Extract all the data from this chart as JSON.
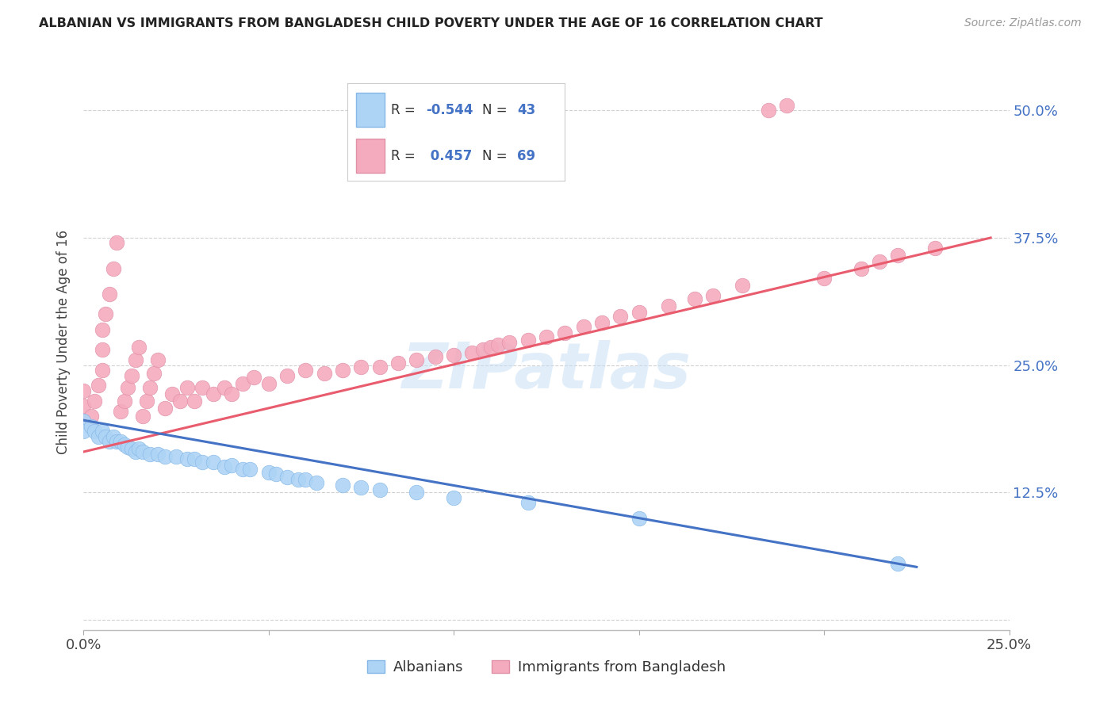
{
  "title": "ALBANIAN VS IMMIGRANTS FROM BANGLADESH CHILD POVERTY UNDER THE AGE OF 16 CORRELATION CHART",
  "source": "Source: ZipAtlas.com",
  "ylabel": "Child Poverty Under the Age of 16",
  "xlim": [
    0.0,
    0.25
  ],
  "ylim": [
    -0.01,
    0.555
  ],
  "xticks": [
    0.0,
    0.05,
    0.1,
    0.15,
    0.2,
    0.25
  ],
  "xtick_labels": [
    "0.0%",
    "",
    "",
    "",
    "",
    "25.0%"
  ],
  "yticks": [
    0.0,
    0.125,
    0.25,
    0.375,
    0.5
  ],
  "ytick_labels": [
    "",
    "12.5%",
    "25.0%",
    "37.5%",
    "50.0%"
  ],
  "albanians_color": "#aed4f5",
  "bangladesh_color": "#f5abbe",
  "line_albanian_color": "#4472c4",
  "line_bangladesh_color": "#e85c6e",
  "albanians_scatter": [
    [
      0.0,
      0.195
    ],
    [
      0.0,
      0.185
    ],
    [
      0.002,
      0.19
    ],
    [
      0.003,
      0.185
    ],
    [
      0.004,
      0.18
    ],
    [
      0.005,
      0.185
    ],
    [
      0.006,
      0.18
    ],
    [
      0.007,
      0.175
    ],
    [
      0.008,
      0.18
    ],
    [
      0.009,
      0.175
    ],
    [
      0.01,
      0.175
    ],
    [
      0.011,
      0.172
    ],
    [
      0.012,
      0.17
    ],
    [
      0.013,
      0.168
    ],
    [
      0.014,
      0.165
    ],
    [
      0.015,
      0.168
    ],
    [
      0.016,
      0.165
    ],
    [
      0.018,
      0.163
    ],
    [
      0.02,
      0.163
    ],
    [
      0.022,
      0.16
    ],
    [
      0.025,
      0.16
    ],
    [
      0.028,
      0.158
    ],
    [
      0.03,
      0.158
    ],
    [
      0.032,
      0.155
    ],
    [
      0.035,
      0.155
    ],
    [
      0.038,
      0.15
    ],
    [
      0.04,
      0.152
    ],
    [
      0.043,
      0.148
    ],
    [
      0.045,
      0.148
    ],
    [
      0.05,
      0.145
    ],
    [
      0.052,
      0.143
    ],
    [
      0.055,
      0.14
    ],
    [
      0.058,
      0.138
    ],
    [
      0.06,
      0.138
    ],
    [
      0.063,
      0.135
    ],
    [
      0.07,
      0.132
    ],
    [
      0.075,
      0.13
    ],
    [
      0.08,
      0.128
    ],
    [
      0.09,
      0.125
    ],
    [
      0.1,
      0.12
    ],
    [
      0.12,
      0.115
    ],
    [
      0.15,
      0.1
    ],
    [
      0.22,
      0.055
    ]
  ],
  "bangladesh_scatter": [
    [
      0.0,
      0.195
    ],
    [
      0.0,
      0.21
    ],
    [
      0.0,
      0.225
    ],
    [
      0.002,
      0.2
    ],
    [
      0.003,
      0.215
    ],
    [
      0.004,
      0.23
    ],
    [
      0.005,
      0.245
    ],
    [
      0.005,
      0.265
    ],
    [
      0.005,
      0.285
    ],
    [
      0.006,
      0.3
    ],
    [
      0.007,
      0.32
    ],
    [
      0.008,
      0.345
    ],
    [
      0.009,
      0.37
    ],
    [
      0.01,
      0.205
    ],
    [
      0.011,
      0.215
    ],
    [
      0.012,
      0.228
    ],
    [
      0.013,
      0.24
    ],
    [
      0.014,
      0.255
    ],
    [
      0.015,
      0.268
    ],
    [
      0.016,
      0.2
    ],
    [
      0.017,
      0.215
    ],
    [
      0.018,
      0.228
    ],
    [
      0.019,
      0.242
    ],
    [
      0.02,
      0.255
    ],
    [
      0.022,
      0.208
    ],
    [
      0.024,
      0.222
    ],
    [
      0.026,
      0.215
    ],
    [
      0.028,
      0.228
    ],
    [
      0.03,
      0.215
    ],
    [
      0.032,
      0.228
    ],
    [
      0.035,
      0.222
    ],
    [
      0.038,
      0.228
    ],
    [
      0.04,
      0.222
    ],
    [
      0.043,
      0.232
    ],
    [
      0.046,
      0.238
    ],
    [
      0.05,
      0.232
    ],
    [
      0.055,
      0.24
    ],
    [
      0.06,
      0.245
    ],
    [
      0.065,
      0.242
    ],
    [
      0.07,
      0.245
    ],
    [
      0.075,
      0.248
    ],
    [
      0.08,
      0.248
    ],
    [
      0.085,
      0.252
    ],
    [
      0.09,
      0.255
    ],
    [
      0.095,
      0.258
    ],
    [
      0.1,
      0.26
    ],
    [
      0.105,
      0.262
    ],
    [
      0.108,
      0.265
    ],
    [
      0.11,
      0.268
    ],
    [
      0.112,
      0.27
    ],
    [
      0.115,
      0.272
    ],
    [
      0.12,
      0.275
    ],
    [
      0.125,
      0.278
    ],
    [
      0.13,
      0.282
    ],
    [
      0.135,
      0.288
    ],
    [
      0.14,
      0.292
    ],
    [
      0.145,
      0.298
    ],
    [
      0.15,
      0.302
    ],
    [
      0.158,
      0.308
    ],
    [
      0.165,
      0.315
    ],
    [
      0.17,
      0.318
    ],
    [
      0.178,
      0.328
    ],
    [
      0.185,
      0.5
    ],
    [
      0.19,
      0.505
    ],
    [
      0.2,
      0.335
    ],
    [
      0.21,
      0.345
    ],
    [
      0.215,
      0.352
    ],
    [
      0.22,
      0.358
    ],
    [
      0.23,
      0.365
    ]
  ],
  "albanian_line": [
    [
      0.0,
      0.196
    ],
    [
      0.225,
      0.052
    ]
  ],
  "bangladesh_line": [
    [
      0.0,
      0.165
    ],
    [
      0.245,
      0.375
    ]
  ],
  "background_color": "#ffffff",
  "grid_color": "#cccccc",
  "watermark_text": "ZIPatlas"
}
